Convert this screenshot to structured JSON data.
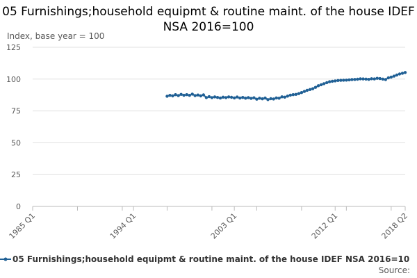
{
  "chart_data": {
    "type": "line",
    "title": "05 Furnishings;household equipmt & routine maint. of the house IDEF NSA 2016=100",
    "ylabel": "Index, base year = 100",
    "xlabel": "",
    "ylim": [
      0,
      125
    ],
    "yticks": [
      0,
      25,
      50,
      75,
      100,
      125
    ],
    "x_range": [
      "1985 Q1",
      "2018 Q2"
    ],
    "xticks": [
      "1985 Q1",
      "1994 Q1",
      "2003 Q1",
      "2012 Q1",
      "2018 Q2"
    ],
    "grid": true,
    "legend_position": "bottom",
    "colors": {
      "series": "#206095",
      "grid": "#e0e0e0",
      "axis": "#bbbbbb"
    },
    "series": [
      {
        "name": "05 Furnishings;household equipmt & routine maint. of the house IDEF NSA 2016=10",
        "x": [
          "1997 Q1",
          "1997 Q2",
          "1997 Q3",
          "1997 Q4",
          "1998 Q1",
          "1998 Q2",
          "1998 Q3",
          "1998 Q4",
          "1999 Q1",
          "1999 Q2",
          "1999 Q3",
          "1999 Q4",
          "2000 Q1",
          "2000 Q2",
          "2000 Q3",
          "2000 Q4",
          "2001 Q1",
          "2001 Q2",
          "2001 Q3",
          "2001 Q4",
          "2002 Q1",
          "2002 Q2",
          "2002 Q3",
          "2002 Q4",
          "2003 Q1",
          "2003 Q2",
          "2003 Q3",
          "2003 Q4",
          "2004 Q1",
          "2004 Q2",
          "2004 Q3",
          "2004 Q4",
          "2005 Q1",
          "2005 Q2",
          "2005 Q3",
          "2005 Q4",
          "2006 Q1",
          "2006 Q2",
          "2006 Q3",
          "2006 Q4",
          "2007 Q1",
          "2007 Q2",
          "2007 Q3",
          "2007 Q4",
          "2008 Q1",
          "2008 Q2",
          "2008 Q3",
          "2008 Q4",
          "2009 Q1",
          "2009 Q2",
          "2009 Q3",
          "2009 Q4",
          "2010 Q1",
          "2010 Q2",
          "2010 Q3",
          "2010 Q4",
          "2011 Q1",
          "2011 Q2",
          "2011 Q3",
          "2011 Q4",
          "2012 Q1",
          "2012 Q2",
          "2012 Q3",
          "2012 Q4",
          "2013 Q1",
          "2013 Q2",
          "2013 Q3",
          "2013 Q4",
          "2014 Q1",
          "2014 Q2",
          "2014 Q3",
          "2014 Q4",
          "2015 Q1",
          "2015 Q2",
          "2015 Q3",
          "2015 Q4",
          "2016 Q1",
          "2016 Q2",
          "2016 Q3",
          "2016 Q4",
          "2017 Q1",
          "2017 Q2",
          "2017 Q3",
          "2017 Q4",
          "2018 Q1",
          "2018 Q2"
        ],
        "values": [
          86.5,
          87.2,
          86.8,
          87.8,
          87.0,
          88.0,
          87.3,
          87.8,
          87.2,
          88.2,
          87.0,
          87.5,
          86.8,
          87.6,
          85.5,
          86.2,
          85.4,
          86.0,
          85.6,
          85.1,
          85.8,
          85.4,
          86.0,
          85.7,
          85.2,
          85.9,
          85.1,
          85.6,
          85.0,
          85.5,
          84.8,
          85.3,
          84.2,
          85.0,
          84.5,
          85.1,
          83.9,
          84.6,
          84.4,
          85.2,
          85.0,
          86.1,
          85.8,
          86.6,
          87.4,
          87.8,
          88.0,
          88.6,
          89.4,
          90.3,
          91.2,
          91.8,
          92.4,
          93.5,
          94.8,
          95.6,
          96.4,
          97.2,
          97.9,
          98.3,
          98.6,
          98.9,
          99.0,
          99.1,
          99.2,
          99.4,
          99.6,
          99.7,
          99.9,
          100.2,
          100.1,
          100.0,
          99.8,
          100.3,
          100.1,
          100.6,
          100.4,
          100.0,
          99.6,
          101.0,
          101.6,
          102.3,
          103.2,
          104.0,
          104.6,
          105.2
        ]
      }
    ]
  },
  "source_label": "Source:"
}
